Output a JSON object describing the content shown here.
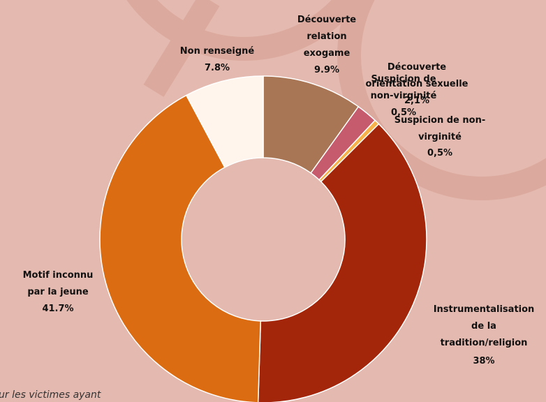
{
  "chart_data": {
    "type": "donut",
    "categories": [
      "Découverte\nrelation\nexogame",
      "Découverte\norientation sexuelle",
      "Suspicion de\nnon-virginité",
      "Instrumentalisation\nde la\ntradition/religion",
      "Motif inconnu\npar la jeune",
      "Non renseigné"
    ],
    "values": [
      9.9,
      2.1,
      0.5,
      38,
      41.7,
      7.8
    ],
    "value_labels": [
      "9.9%",
      "2,1%",
      "0,5%",
      "38%",
      "41.7%",
      "7.8%"
    ],
    "colors": [
      "#a87555",
      "#c65b6e",
      "#f7b24a",
      "#a3260b",
      "#dc6c12",
      "#fff5ec"
    ],
    "duplicate_label": "Suspicion de non-\nvirginité",
    "footnote": "ur les victimes ayant"
  }
}
